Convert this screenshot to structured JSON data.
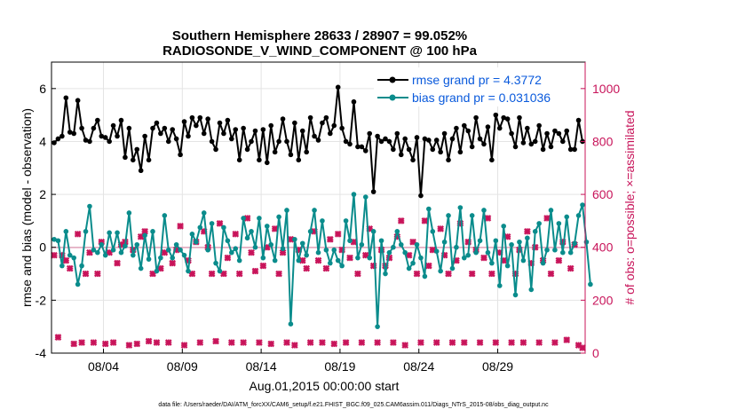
{
  "chart_data": {
    "type": "line",
    "title": "Southern Hemisphere 28633 / 28907 = 99.052%",
    "subtitle": "RADIOSONDE_V_WIND_COMPONENT @ 100 hPa",
    "xlabel": "Aug.01,2015 00:00:00 start",
    "ylabel": "rmse and bias (model - observation)",
    "ylabel_right": "# of obs: o=possible; ×=assimilated",
    "ylim": [
      -4,
      7
    ],
    "ylim_right": [
      0,
      1100
    ],
    "x_ticks": [
      "08/04",
      "08/09",
      "08/14",
      "08/19",
      "08/24",
      "08/29"
    ],
    "y_ticks": [
      "-4",
      "-2",
      "0",
      "2",
      "4",
      "6"
    ],
    "y_ticks_right": [
      "0",
      "200",
      "400",
      "600",
      "800",
      "1000"
    ],
    "legend": [
      "rmse grand pr = 4.3772",
      "bias grand pr = 0.031036"
    ],
    "footer": "data file: /Users/raeder/DAI/ATM_forcXX/CAM6_setup/f.e21.FHIST_BGC.f09_025.CAM6assim.011/Diags_NTrS_2015-08/obs_diag_output.nc",
    "series": [
      {
        "name": "rmse",
        "color": "#000000",
        "values": [
          3.95,
          4.1,
          4.2,
          5.65,
          4.35,
          4.3,
          5.55,
          4.5,
          4.05,
          4.0,
          4.5,
          4.8,
          4.2,
          4.15,
          4.0,
          4.6,
          4.2,
          4.8,
          3.4,
          4.5,
          3.3,
          3.7,
          2.9,
          4.2,
          3.3,
          4.5,
          4.7,
          4.3,
          4.5,
          4.0,
          4.45,
          4.1,
          3.5,
          4.75,
          4.2,
          4.9,
          4.6,
          4.9,
          4.3,
          4.85,
          4.0,
          3.7,
          4.7,
          4.3,
          4.8,
          4.1,
          4.45,
          3.3,
          4.5,
          3.7,
          4.0,
          4.4,
          3.3,
          4.45,
          3.2,
          4.6,
          3.6,
          4.0,
          4.85,
          4.0,
          3.5,
          4.7,
          3.3,
          4.4,
          3.6,
          4.9,
          4.2,
          4.05,
          4.7,
          4.9,
          4.3,
          4.6,
          6.05,
          4.5,
          4.0,
          3.9,
          5.5,
          3.8,
          3.8,
          3.65,
          4.3,
          2.1,
          4.2,
          4.0,
          4.1,
          4.0,
          3.7,
          4.3,
          3.5,
          4.1,
          3.7,
          3.3,
          4.15,
          1.95,
          4.1,
          4.05,
          3.7,
          4.05,
          3.6,
          4.3,
          3.3,
          4.1,
          4.5,
          3.6,
          4.6,
          4.4,
          3.8,
          4.9,
          4.1,
          3.9,
          4.55,
          3.3,
          5.0,
          4.5,
          4.9,
          4.85,
          4.3,
          3.8,
          4.9,
          3.95,
          4.5,
          3.9,
          4.0,
          4.6,
          3.7,
          4.3,
          3.8,
          4.4,
          4.3,
          4.0,
          4.4,
          3.7,
          3.7,
          4.8,
          4.0
        ]
      },
      {
        "name": "bias",
        "color": "#0a8c8c",
        "values": [
          0.3,
          0.25,
          -0.7,
          0.6,
          -0.3,
          -0.4,
          -1.4,
          -0.7,
          0.6,
          1.55,
          -0.1,
          -0.2,
          0.1,
          -0.3,
          0.55,
          -0.1,
          0.55,
          -0.2,
          0.05,
          1.3,
          -0.3,
          0.1,
          -0.8,
          0.45,
          -0.45,
          0.6,
          -0.9,
          -0.4,
          1.2,
          -0.1,
          -0.4,
          0.1,
          -0.1,
          -0.3,
          -0.9,
          0.5,
          0.2,
          0.75,
          1.3,
          -0.1,
          0.9,
          -0.6,
          -0.9,
          0.75,
          0.25,
          -0.2,
          -0.05,
          -0.5,
          1.1,
          0.35,
          0.6,
          0.0,
          1.1,
          -0.4,
          0.8,
          0.1,
          -0.5,
          1.15,
          -0.05,
          1.4,
          -2.9,
          0.3,
          -0.5,
          0.15,
          -0.3,
          0.6,
          1.4,
          -0.2,
          1.0,
          -0.1,
          -0.6,
          -0.1,
          -0.5,
          -0.7,
          1.0,
          0.25,
          2.0,
          -0.4,
          0.1,
          1.9,
          -0.4,
          0.6,
          -3.0,
          0.25,
          -1.0,
          -0.2,
          0.0,
          0.6,
          0.1,
          -0.2,
          -0.8,
          -0.6,
          0.1,
          -0.4,
          -1.1,
          1.45,
          0.6,
          -0.15,
          -0.9,
          0.2,
          1.2,
          -0.8,
          0.0,
          1.5,
          -0.4,
          -0.3,
          1.2,
          -0.2,
          0.25,
          1.4,
          -0.2,
          -0.6,
          0.25,
          -1.45,
          0.8,
          -0.7,
          0.1,
          -1.8,
          0.2,
          -0.5,
          0.35,
          -1.6,
          0.6,
          0.9,
          -0.6,
          -0.1,
          1.4,
          -0.1,
          0.9,
          -0.2,
          1.15,
          -0.2,
          0.15,
          1.2,
          1.6,
          0.2,
          -1.4
        ]
      },
      {
        "name": "obs_assimilated",
        "color": "#c8145a",
        "values": [
          370,
          60,
          370,
          350,
          320,
          35,
          450,
          40,
          300,
          380,
          40,
          300,
          420,
          35,
          380,
          40,
          340,
          410,
          420,
          30,
          390,
          35,
          440,
          460,
          45,
          300,
          40,
          320,
          380,
          40,
          340,
          390,
          480,
          30,
          350,
          300,
          420,
          40,
          460,
          400,
          300,
          45,
          490,
          300,
          360,
          40,
          450,
          300,
          40,
          510,
          380,
          310,
          40,
          330,
          400,
          35,
          470,
          300,
          380,
          40,
          430,
          30,
          390,
          350,
          320,
          40,
          460,
          350,
          40,
          320,
          430,
          35,
          450,
          390,
          40,
          360,
          420,
          300,
          40,
          370,
          470,
          330,
          40,
          390,
          330,
          360,
          40,
          440,
          500,
          30,
          370,
          420,
          300,
          40,
          500,
          330,
          390,
          40,
          470,
          370,
          300,
          40,
          350,
          490,
          40,
          420,
          300,
          390,
          40,
          360,
          510,
          300,
          40,
          380,
          350,
          440,
          40,
          300,
          390,
          40,
          460,
          340,
          400,
          40,
          350,
          510,
          300,
          40,
          350,
          420,
          50,
          320,
          410,
          30,
          20
        ]
      }
    ]
  }
}
